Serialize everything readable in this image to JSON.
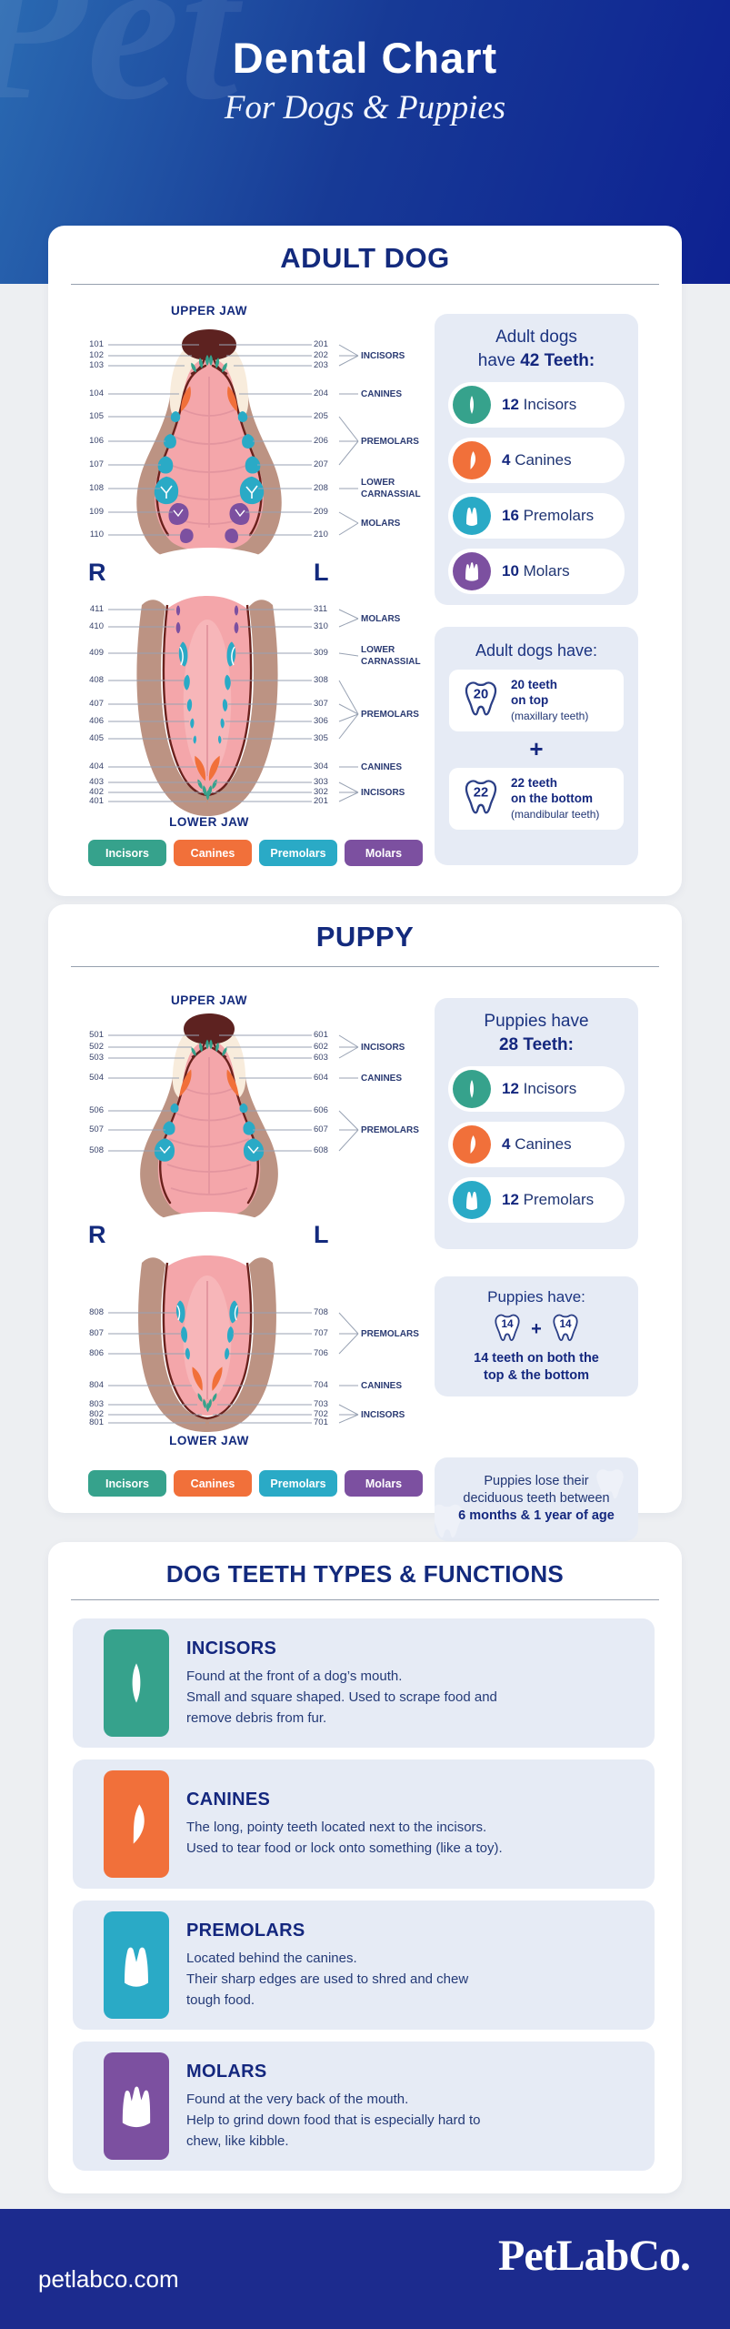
{
  "header": {
    "title": "Dental Chart",
    "subtitle": "For Dogs & Puppies",
    "watermark": "Pet"
  },
  "colors": {
    "incisors": "#36a28c",
    "canines": "#f1703a",
    "premolars": "#2aaac6",
    "molars": "#7c50a0",
    "navy": "#14277e",
    "footer": "#1c2b8e"
  },
  "legend_labels": [
    "Incisors",
    "Canines",
    "Premolars",
    "Molars"
  ],
  "adult": {
    "title": "ADULT DOG",
    "upper_jaw_label": "UPPER JAW",
    "lower_jaw_label": "LOWER JAW",
    "right_label": "R",
    "left_label": "L",
    "upper_left_numbers": [
      "101",
      "102",
      "103",
      "104",
      "105",
      "106",
      "107",
      "108",
      "109",
      "110"
    ],
    "upper_right_numbers": [
      "201",
      "202",
      "203",
      "204",
      "205",
      "206",
      "207",
      "208",
      "209",
      "210"
    ],
    "upper_categories": [
      "INCISORS",
      "CANINES",
      "PREMOLARS",
      "LOWER CARNASSIAL",
      "MOLARS"
    ],
    "lower_left_numbers": [
      "411",
      "410",
      "409",
      "408",
      "407",
      "406",
      "405",
      "404",
      "403",
      "402",
      "401"
    ],
    "lower_right_numbers": [
      "311",
      "310",
      "309",
      "308",
      "307",
      "306",
      "305",
      "304",
      "303",
      "302",
      "201"
    ],
    "lower_categories": [
      "MOLARS",
      "LOWER CARNASSIAL",
      "PREMOLARS",
      "CANINES",
      "INCISORS"
    ],
    "panel1": {
      "heading1": "Adult dogs",
      "heading2a": "have",
      "heading2b": "42 Teeth:",
      "items": [
        {
          "count": "12",
          "label": "Incisors",
          "type": "incisors"
        },
        {
          "count": "4",
          "label": "Canines",
          "type": "canines"
        },
        {
          "count": "16",
          "label": "Premolars",
          "type": "premolars"
        },
        {
          "count": "10",
          "label": "Molars",
          "type": "molars"
        }
      ]
    },
    "panel2": {
      "heading": "Adult dogs have:",
      "plus": "+",
      "boxes": [
        {
          "badge": "20",
          "line1": "20 teeth",
          "line2": "on top",
          "note": "(maxillary teeth)"
        },
        {
          "badge": "22",
          "line1": "22 teeth",
          "line2": "on the bottom",
          "note": "(mandibular teeth)"
        }
      ]
    }
  },
  "puppy": {
    "title": "PUPPY",
    "upper_jaw_label": "UPPER JAW",
    "lower_jaw_label": "LOWER JAW",
    "right_label": "R",
    "left_label": "L",
    "upper_left_numbers": [
      "501",
      "502",
      "503",
      "504",
      "506",
      "507",
      "508"
    ],
    "upper_right_numbers": [
      "601",
      "602",
      "603",
      "604",
      "606",
      "607",
      "608"
    ],
    "upper_categories": [
      "INCISORS",
      "CANINES",
      "PREMOLARS"
    ],
    "lower_left_numbers": [
      "808",
      "807",
      "806",
      "804",
      "803",
      "802",
      "801"
    ],
    "lower_right_numbers": [
      "708",
      "707",
      "706",
      "704",
      "703",
      "702",
      "701"
    ],
    "lower_categories": [
      "PREMOLARS",
      "CANINES",
      "INCISORS"
    ],
    "panel1": {
      "heading1": "Puppies have",
      "heading2b": "28 Teeth:",
      "items": [
        {
          "count": "12",
          "label": "Incisors",
          "type": "incisors"
        },
        {
          "count": "4",
          "label": "Canines",
          "type": "canines"
        },
        {
          "count": "12",
          "label": "Premolars",
          "type": "premolars"
        }
      ]
    },
    "panel2": {
      "heading": "Puppies have:",
      "plus": "+",
      "badges": [
        "14",
        "14"
      ],
      "line1": "14 teeth on both the",
      "line2": "top & the bottom"
    },
    "panel3": {
      "line1": "Puppies lose their",
      "line2": "deciduous teeth between",
      "line3": "6 months & 1 year of age"
    }
  },
  "types": {
    "title": "DOG TEETH TYPES & FUNCTIONS",
    "rows": [
      {
        "name": "INCISORS",
        "type": "incisors",
        "desc_lines": [
          "Found at the front of a dog’s mouth.",
          "Small and square shaped. Used to scrape food and",
          "remove debris from fur."
        ]
      },
      {
        "name": "CANINES",
        "type": "canines",
        "desc_lines": [
          "The long, pointy teeth located next to the incisors.",
          "Used to tear food or lock onto something (like a toy)."
        ]
      },
      {
        "name": "PREMOLARS",
        "type": "premolars",
        "desc_lines": [
          "Located behind the canines.",
          "Their sharp edges are used to shred and chew",
          "tough food."
        ]
      },
      {
        "name": "MOLARS",
        "type": "molars",
        "desc_lines": [
          "Found at the very back of the mouth.",
          "Help to grind down food that is especially hard to",
          "chew, like kibble."
        ]
      }
    ]
  },
  "footer": {
    "url": "petlabco.com",
    "logo": "PetLabCo."
  }
}
